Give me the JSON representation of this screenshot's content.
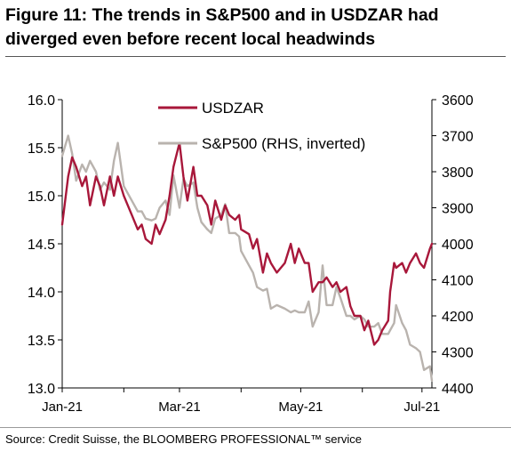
{
  "figure": {
    "title_line1": "Figure 11: The trends in S&P500 and in USDZAR had",
    "title_line2": "diverged even before recent local headwinds",
    "source": "Source: Credit Suisse, the BLOOMBERG PROFESSIONAL™ service"
  },
  "chart_data": {
    "type": "line",
    "title": "Figure 11: The trends in S&P500 and in USDZAR had diverged even before recent local headwinds",
    "x_ticks": [
      "Jan-21",
      "Mar-21",
      "May-21",
      "Jul-21"
    ],
    "xlim": [
      "2021-01-01",
      "2021-07-06"
    ],
    "y_left": {
      "ylim": [
        13.0,
        16.0
      ],
      "ticks": [
        "16.0",
        "15.5",
        "15.0",
        "14.5",
        "14.0",
        "13.5",
        "13.0"
      ]
    },
    "y_right": {
      "ylim": [
        3600,
        4400
      ],
      "inverted": true,
      "ticks": [
        "3600",
        "3700",
        "3800",
        "3900",
        "4000",
        "4100",
        "4200",
        "4300",
        "4400"
      ]
    },
    "legend": {
      "placement": "top-center"
    },
    "grid": false,
    "colors": {
      "usdzar": "#a8173a",
      "sp500": "#b9b3ae"
    },
    "series": [
      {
        "name": "USDZAR",
        "axis": "left",
        "points": [
          [
            "2021-01-01",
            14.7
          ],
          [
            "2021-01-04",
            15.2
          ],
          [
            "2021-01-06",
            15.4
          ],
          [
            "2021-01-08",
            15.3
          ],
          [
            "2021-01-11",
            15.1
          ],
          [
            "2021-01-13",
            15.2
          ],
          [
            "2021-01-15",
            14.9
          ],
          [
            "2021-01-18",
            15.2
          ],
          [
            "2021-01-20",
            15.1
          ],
          [
            "2021-01-22",
            14.9
          ],
          [
            "2021-01-25",
            15.2
          ],
          [
            "2021-01-27",
            15.0
          ],
          [
            "2021-01-29",
            15.2
          ],
          [
            "2021-02-01",
            15.0
          ],
          [
            "2021-02-03",
            14.9
          ],
          [
            "2021-02-05",
            14.8
          ],
          [
            "2021-02-08",
            14.65
          ],
          [
            "2021-02-10",
            14.7
          ],
          [
            "2021-02-12",
            14.55
          ],
          [
            "2021-02-15",
            14.5
          ],
          [
            "2021-02-17",
            14.7
          ],
          [
            "2021-02-19",
            14.6
          ],
          [
            "2021-02-22",
            14.75
          ],
          [
            "2021-02-24",
            15.0
          ],
          [
            "2021-02-26",
            15.3
          ],
          [
            "2021-03-01",
            15.55
          ],
          [
            "2021-03-03",
            15.2
          ],
          [
            "2021-03-05",
            14.95
          ],
          [
            "2021-03-08",
            15.3
          ],
          [
            "2021-03-10",
            15.0
          ],
          [
            "2021-03-12",
            15.0
          ],
          [
            "2021-03-15",
            14.9
          ],
          [
            "2021-03-17",
            14.7
          ],
          [
            "2021-03-19",
            14.95
          ],
          [
            "2021-03-22",
            14.75
          ],
          [
            "2021-03-24",
            14.9
          ],
          [
            "2021-03-26",
            14.8
          ],
          [
            "2021-03-29",
            14.75
          ],
          [
            "2021-03-31",
            14.8
          ],
          [
            "2021-04-01",
            14.65
          ],
          [
            "2021-04-05",
            14.6
          ],
          [
            "2021-04-07",
            14.45
          ],
          [
            "2021-04-09",
            14.55
          ],
          [
            "2021-04-12",
            14.2
          ],
          [
            "2021-04-14",
            14.4
          ],
          [
            "2021-04-16",
            14.3
          ],
          [
            "2021-04-19",
            14.2
          ],
          [
            "2021-04-21",
            14.25
          ],
          [
            "2021-04-23",
            14.3
          ],
          [
            "2021-04-26",
            14.5
          ],
          [
            "2021-04-28",
            14.3
          ],
          [
            "2021-04-30",
            14.45
          ],
          [
            "2021-05-03",
            14.3
          ],
          [
            "2021-05-05",
            14.3
          ],
          [
            "2021-05-07",
            14.0
          ],
          [
            "2021-05-10",
            14.1
          ],
          [
            "2021-05-12",
            14.1
          ],
          [
            "2021-05-14",
            14.15
          ],
          [
            "2021-05-17",
            14.05
          ],
          [
            "2021-05-19",
            14.1
          ],
          [
            "2021-05-21",
            14.0
          ],
          [
            "2021-05-24",
            14.05
          ],
          [
            "2021-05-26",
            13.85
          ],
          [
            "2021-05-28",
            13.75
          ],
          [
            "2021-05-31",
            13.75
          ],
          [
            "2021-06-02",
            13.6
          ],
          [
            "2021-06-04",
            13.7
          ],
          [
            "2021-06-07",
            13.45
          ],
          [
            "2021-06-09",
            13.5
          ],
          [
            "2021-06-11",
            13.6
          ],
          [
            "2021-06-14",
            13.7
          ],
          [
            "2021-06-15",
            14.0
          ],
          [
            "2021-06-17",
            14.3
          ],
          [
            "2021-06-18",
            14.25
          ],
          [
            "2021-06-21",
            14.3
          ],
          [
            "2021-06-23",
            14.2
          ],
          [
            "2021-06-25",
            14.3
          ],
          [
            "2021-06-28",
            14.4
          ],
          [
            "2021-06-30",
            14.3
          ],
          [
            "2021-07-02",
            14.25
          ],
          [
            "2021-07-05",
            14.45
          ],
          [
            "2021-07-06",
            14.5
          ]
        ]
      },
      {
        "name": "S&P500 (RHS, inverted)",
        "axis": "right",
        "points": [
          [
            "2021-01-01",
            3756
          ],
          [
            "2021-01-04",
            3700
          ],
          [
            "2021-01-06",
            3750
          ],
          [
            "2021-01-08",
            3825
          ],
          [
            "2021-01-11",
            3780
          ],
          [
            "2021-01-13",
            3800
          ],
          [
            "2021-01-15",
            3770
          ],
          [
            "2021-01-18",
            3800
          ],
          [
            "2021-01-20",
            3850
          ],
          [
            "2021-01-22",
            3830
          ],
          [
            "2021-01-25",
            3850
          ],
          [
            "2021-01-27",
            3770
          ],
          [
            "2021-01-29",
            3720
          ],
          [
            "2021-02-01",
            3840
          ],
          [
            "2021-02-03",
            3860
          ],
          [
            "2021-02-05",
            3880
          ],
          [
            "2021-02-08",
            3910
          ],
          [
            "2021-02-10",
            3910
          ],
          [
            "2021-02-12",
            3930
          ],
          [
            "2021-02-15",
            3935
          ],
          [
            "2021-02-17",
            3930
          ],
          [
            "2021-02-19",
            3900
          ],
          [
            "2021-02-22",
            3880
          ],
          [
            "2021-02-24",
            3920
          ],
          [
            "2021-02-26",
            3810
          ],
          [
            "2021-03-01",
            3900
          ],
          [
            "2021-03-03",
            3820
          ],
          [
            "2021-03-05",
            3840
          ],
          [
            "2021-03-08",
            3830
          ],
          [
            "2021-03-10",
            3900
          ],
          [
            "2021-03-12",
            3940
          ],
          [
            "2021-03-15",
            3960
          ],
          [
            "2021-03-17",
            3970
          ],
          [
            "2021-03-19",
            3930
          ],
          [
            "2021-03-22",
            3920
          ],
          [
            "2021-03-24",
            3890
          ],
          [
            "2021-03-26",
            3970
          ],
          [
            "2021-03-29",
            3970
          ],
          [
            "2021-03-31",
            3980
          ],
          [
            "2021-04-01",
            4020
          ],
          [
            "2021-04-05",
            4060
          ],
          [
            "2021-04-07",
            4080
          ],
          [
            "2021-04-09",
            4120
          ],
          [
            "2021-04-12",
            4130
          ],
          [
            "2021-04-14",
            4125
          ],
          [
            "2021-04-16",
            4180
          ],
          [
            "2021-04-19",
            4170
          ],
          [
            "2021-04-21",
            4175
          ],
          [
            "2021-04-23",
            4180
          ],
          [
            "2021-04-26",
            4190
          ],
          [
            "2021-04-28",
            4185
          ],
          [
            "2021-04-30",
            4190
          ],
          [
            "2021-05-03",
            4190
          ],
          [
            "2021-05-05",
            4160
          ],
          [
            "2021-05-07",
            4230
          ],
          [
            "2021-05-10",
            4190
          ],
          [
            "2021-05-12",
            4060
          ],
          [
            "2021-05-14",
            4170
          ],
          [
            "2021-05-17",
            4170
          ],
          [
            "2021-05-19",
            4120
          ],
          [
            "2021-05-21",
            4150
          ],
          [
            "2021-05-24",
            4200
          ],
          [
            "2021-05-26",
            4200
          ],
          [
            "2021-05-28",
            4210
          ],
          [
            "2021-05-31",
            4200
          ],
          [
            "2021-06-02",
            4210
          ],
          [
            "2021-06-04",
            4230
          ],
          [
            "2021-06-07",
            4230
          ],
          [
            "2021-06-09",
            4220
          ],
          [
            "2021-06-11",
            4250
          ],
          [
            "2021-06-14",
            4250
          ],
          [
            "2021-06-15",
            4240
          ],
          [
            "2021-06-17",
            4220
          ],
          [
            "2021-06-18",
            4170
          ],
          [
            "2021-06-21",
            4220
          ],
          [
            "2021-06-23",
            4240
          ],
          [
            "2021-06-25",
            4280
          ],
          [
            "2021-06-28",
            4290
          ],
          [
            "2021-06-30",
            4300
          ],
          [
            "2021-07-02",
            4350
          ],
          [
            "2021-07-05",
            4340
          ],
          [
            "2021-07-06",
            4380
          ]
        ]
      }
    ]
  }
}
